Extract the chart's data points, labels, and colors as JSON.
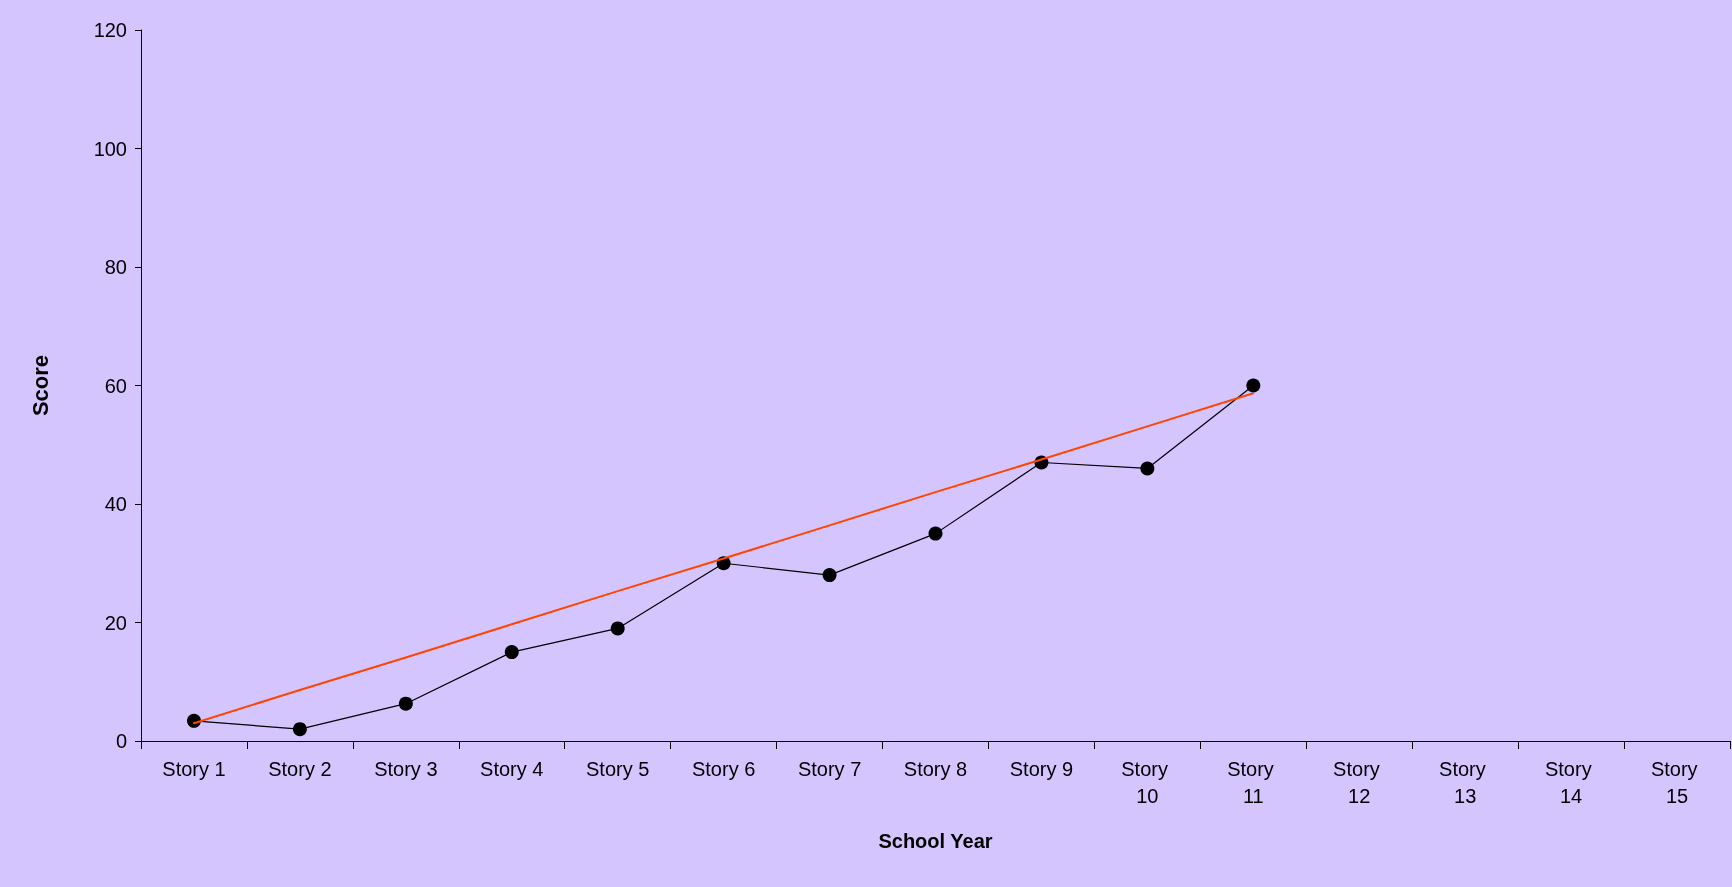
{
  "chart_data": {
    "type": "line",
    "xlabel": "School Year",
    "ylabel": "Score",
    "categories": [
      "Story 1",
      "Story 2",
      "Story 3",
      "Story 4",
      "Story 5",
      "Story 6",
      "Story 7",
      "Story 8",
      "Story 9",
      "Story 10",
      "Story 11",
      "Story 12",
      "Story 13",
      "Story 14",
      "Story 15"
    ],
    "series": [
      {
        "color": "#000000",
        "values": [
          3.4,
          2,
          6.3,
          15,
          19,
          30,
          28,
          35,
          47,
          46,
          60,
          null,
          null,
          null,
          null
        ]
      },
      {
        "type": "line",
        "color": "#ff4500",
        "marker": "none",
        "values": [
          3,
          8.6,
          14.1,
          19.7,
          25.3,
          30.8,
          36.4,
          42,
          47.5,
          53.1,
          58.7,
          null,
          null,
          null,
          null
        ]
      }
    ],
    "ylim": [
      0,
      120
    ],
    "yticks": [
      0,
      20,
      40,
      60,
      80,
      100,
      120
    ],
    "grid": false,
    "marker": "circle",
    "line_style": "solid"
  }
}
